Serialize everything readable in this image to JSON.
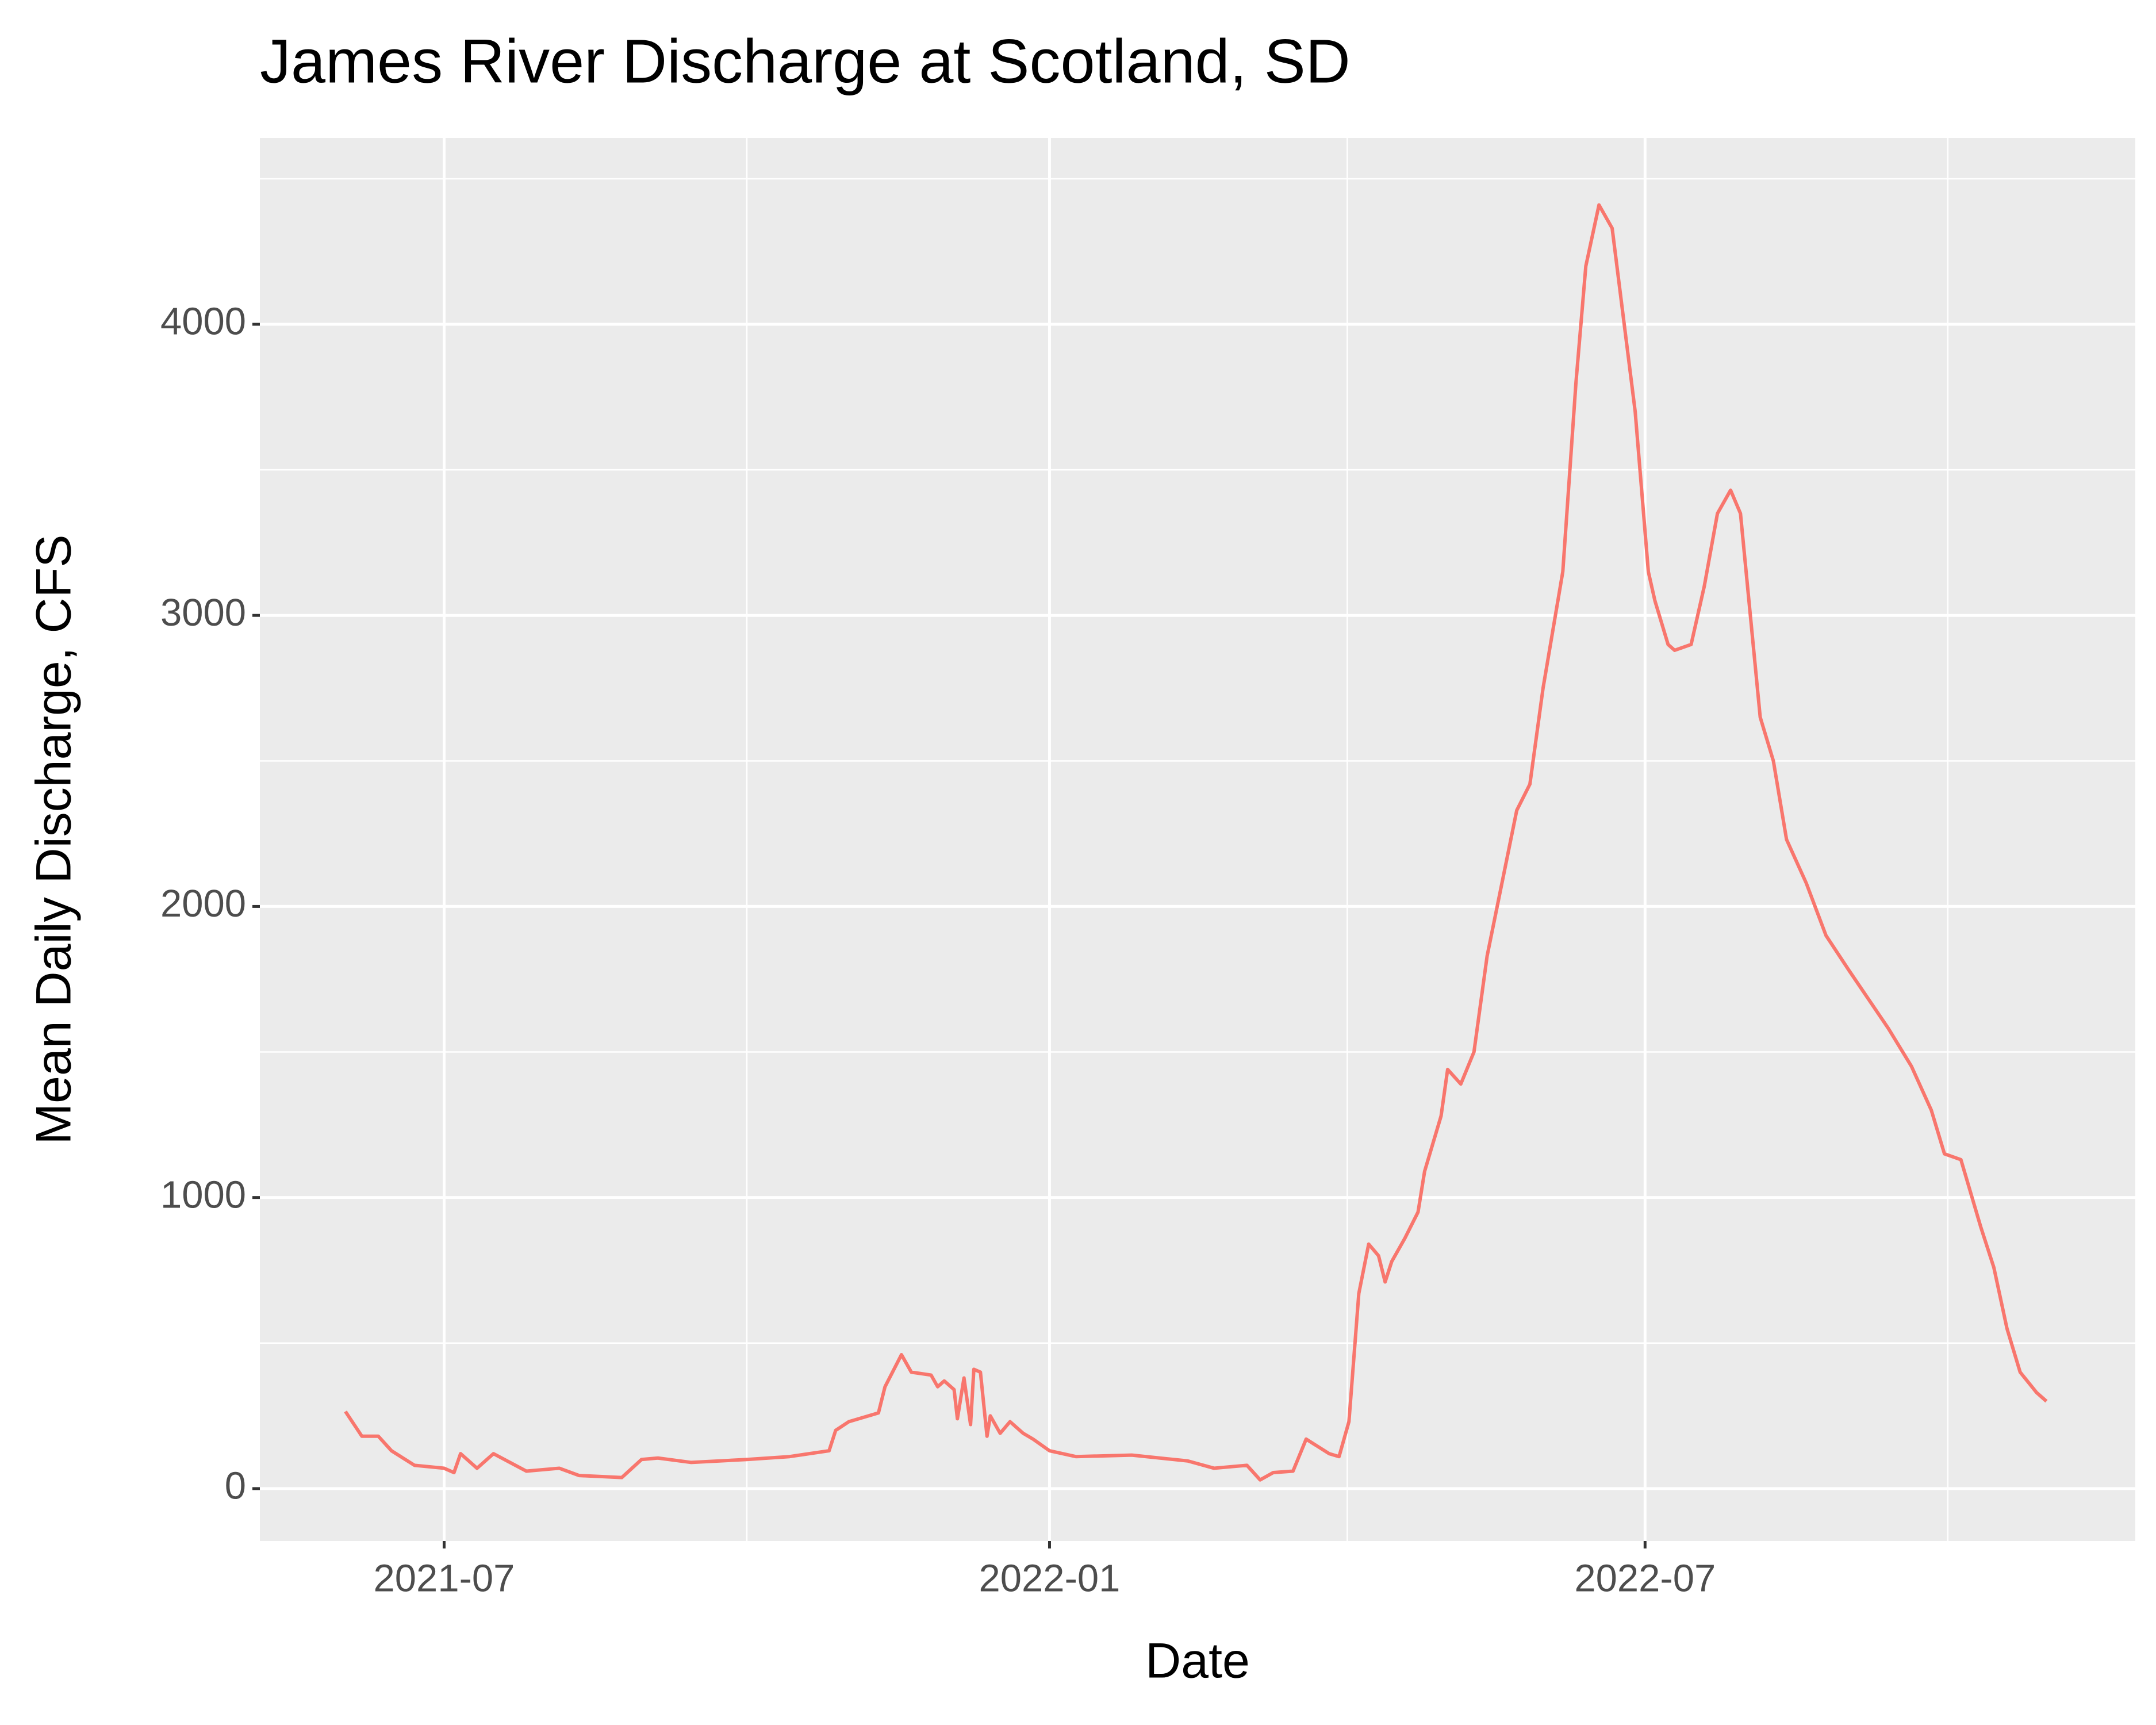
{
  "chart_data": {
    "type": "line",
    "title": "James River Discharge at Scotland, SD",
    "x_label": "Date",
    "y_label": "Mean Daily Discharge, CFS",
    "x": [
      "2021-06-01",
      "2021-06-06",
      "2021-06-11",
      "2021-06-15",
      "2021-06-22",
      "2021-07-01",
      "2021-07-04",
      "2021-07-06",
      "2021-07-11",
      "2021-07-16",
      "2021-07-26",
      "2021-08-05",
      "2021-08-11",
      "2021-08-24",
      "2021-08-30",
      "2021-09-04",
      "2021-09-14",
      "2021-10-01",
      "2021-10-14",
      "2021-10-26",
      "2021-10-28",
      "2021-11-01",
      "2021-11-10",
      "2021-11-12",
      "2021-11-17",
      "2021-11-20",
      "2021-11-26",
      "2021-11-28",
      "2021-11-30",
      "2021-12-03",
      "2021-12-04",
      "2021-12-06",
      "2021-12-08",
      "2021-12-09",
      "2021-12-11",
      "2021-12-13",
      "2021-12-14",
      "2021-12-17",
      "2021-12-20",
      "2021-12-24",
      "2021-12-27",
      "2022-01-01",
      "2022-01-09",
      "2022-01-26",
      "2022-02-12",
      "2022-02-20",
      "2022-03-02",
      "2022-03-06",
      "2022-03-10",
      "2022-03-16",
      "2022-03-20",
      "2022-03-27",
      "2022-03-30",
      "2022-04-02",
      "2022-04-05",
      "2022-04-08",
      "2022-04-11",
      "2022-04-13",
      "2022-04-15",
      "2022-04-19",
      "2022-04-23",
      "2022-04-25",
      "2022-04-30",
      "2022-05-02",
      "2022-05-06",
      "2022-05-10",
      "2022-05-14",
      "2022-05-23",
      "2022-05-27",
      "2022-05-31",
      "2022-06-06",
      "2022-06-10",
      "2022-06-13",
      "2022-06-17",
      "2022-06-21",
      "2022-06-23",
      "2022-06-28",
      "2022-07-02",
      "2022-07-04",
      "2022-07-08",
      "2022-07-10",
      "2022-07-15",
      "2022-07-19",
      "2022-07-23",
      "2022-07-27",
      "2022-07-30",
      "2022-08-05",
      "2022-08-09",
      "2022-08-13",
      "2022-08-19",
      "2022-08-25",
      "2022-09-01",
      "2022-09-07",
      "2022-09-13",
      "2022-09-20",
      "2022-09-26",
      "2022-09-30",
      "2022-10-05",
      "2022-10-11",
      "2022-10-15",
      "2022-10-19",
      "2022-10-23",
      "2022-10-28",
      "2022-10-31"
    ],
    "series": [
      {
        "name": "discharge",
        "color": "#F8766D",
        "values": [
          265,
          180,
          180,
          130,
          80,
          70,
          55,
          120,
          70,
          120,
          60,
          70,
          45,
          38,
          100,
          105,
          90,
          100,
          110,
          130,
          200,
          230,
          260,
          350,
          460,
          400,
          390,
          350,
          370,
          340,
          240,
          380,
          220,
          410,
          400,
          180,
          250,
          190,
          230,
          190,
          170,
          130,
          110,
          115,
          95,
          70,
          80,
          30,
          55,
          60,
          170,
          120,
          110,
          230,
          670,
          840,
          800,
          710,
          780,
          860,
          950,
          1090,
          1280,
          1440,
          1390,
          1500,
          1830,
          2330,
          2420,
          2750,
          3150,
          3800,
          4200,
          4410,
          4330,
          4150,
          3700,
          3150,
          3050,
          2900,
          2880,
          2900,
          3100,
          3350,
          3430,
          3350,
          2650,
          2500,
          2230,
          2080,
          1900,
          1780,
          1680,
          1580,
          1450,
          1300,
          1150,
          1130,
          900,
          760,
          550,
          400,
          330,
          300
        ]
      }
    ],
    "xlim": [
      "2021-05-06",
      "2022-11-27"
    ],
    "xticks": [
      "2021-07",
      "2022-01",
      "2022-07"
    ],
    "ylim": [
      -180,
      4640
    ],
    "yticks": [
      0,
      1000,
      2000,
      3000,
      4000
    ],
    "grid": true
  }
}
